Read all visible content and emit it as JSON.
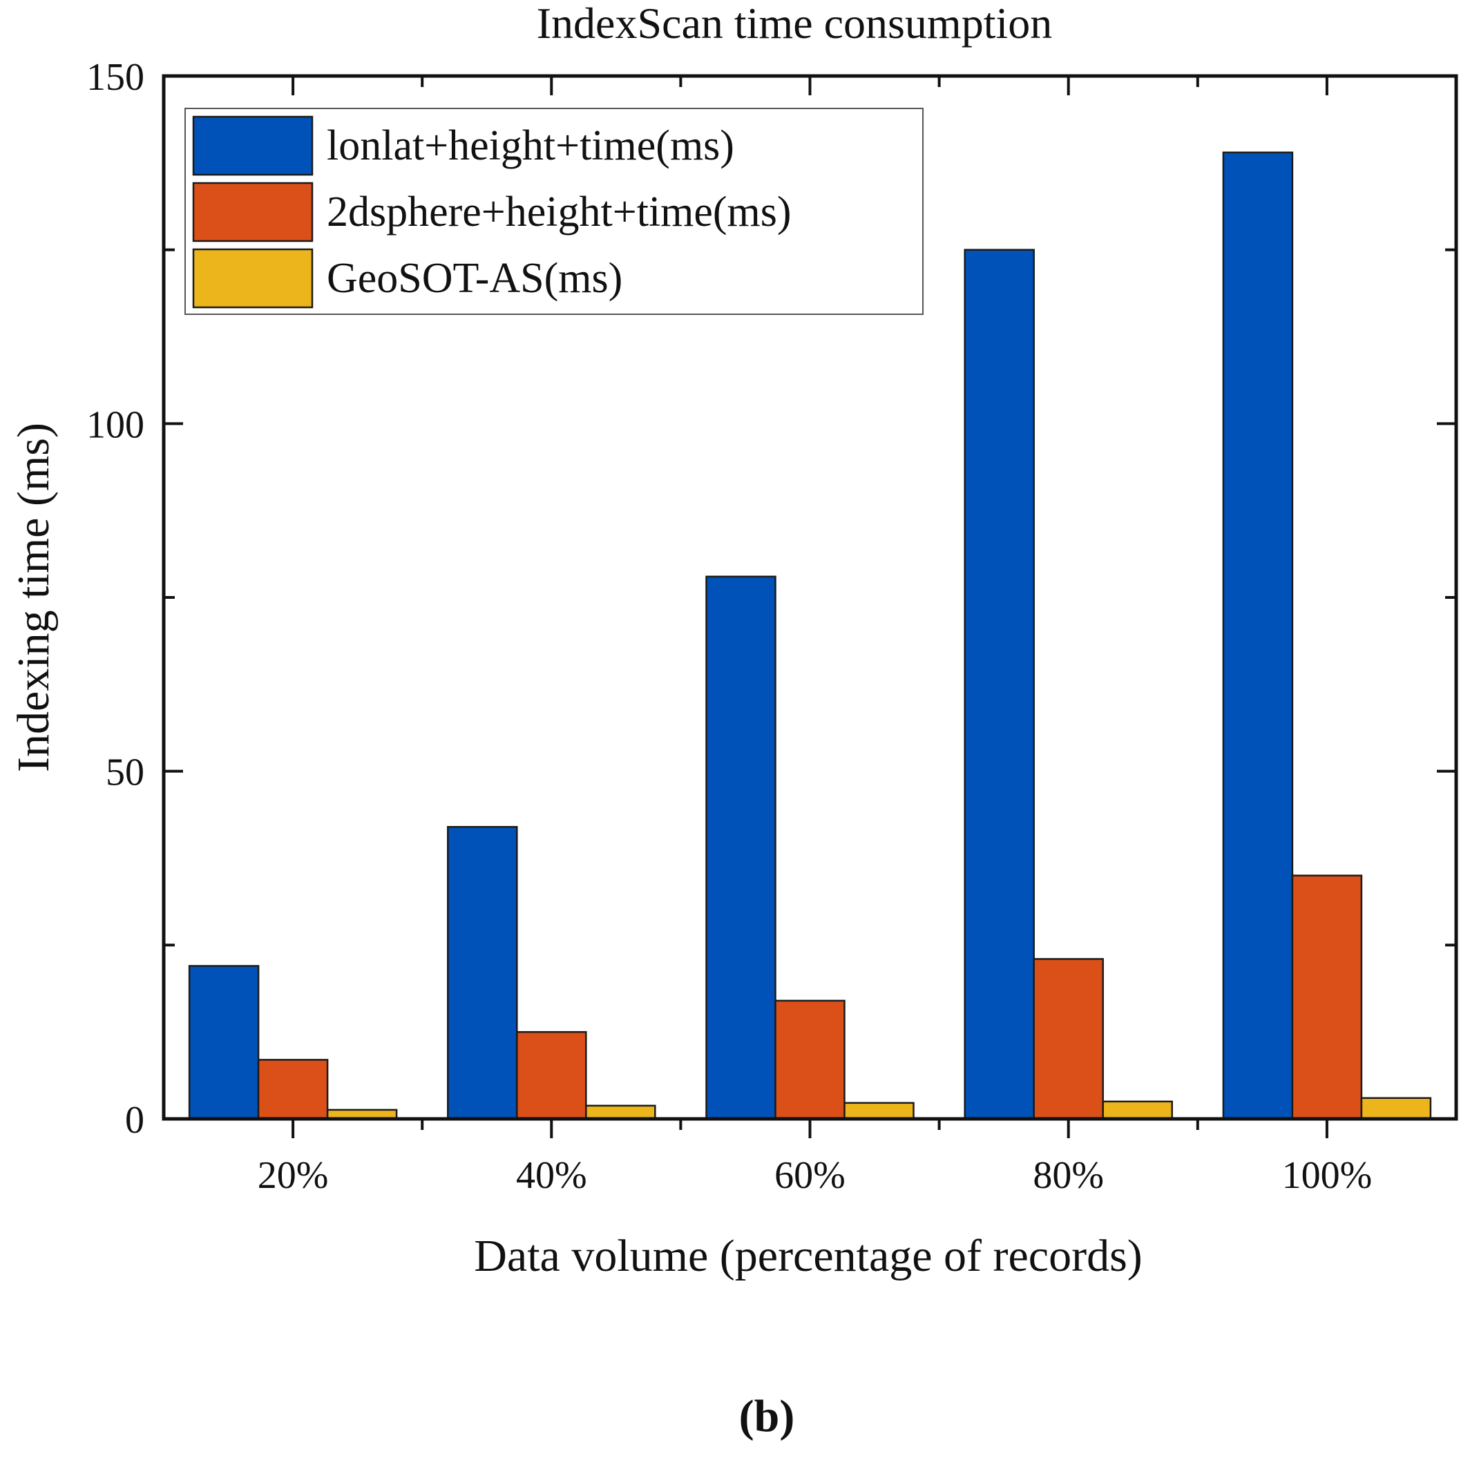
{
  "chart_data": {
    "type": "bar",
    "title": "IndexScan time consumption",
    "xlabel": "Data volume (percentage of records)",
    "ylabel": "Indexing time (ms)",
    "categories": [
      "20%",
      "40%",
      "60%",
      "80%",
      "100%"
    ],
    "ylim": [
      0,
      150
    ],
    "yticks": [
      0,
      50,
      100,
      150
    ],
    "grid": false,
    "legend_position": "top-left",
    "series": [
      {
        "name": "lonlat+height+time(ms)",
        "color": "#0052b8",
        "values": [
          22,
          42,
          78,
          125,
          139
        ]
      },
      {
        "name": "2dsphere+height+time(ms)",
        "color": "#db5018",
        "values": [
          8.5,
          12.5,
          17,
          23,
          35
        ]
      },
      {
        "name": "GeoSOT-AS(ms)",
        "color": "#edb51c",
        "values": [
          1.3,
          1.9,
          2.3,
          2.5,
          3
        ]
      }
    ]
  },
  "caption": "(b)"
}
